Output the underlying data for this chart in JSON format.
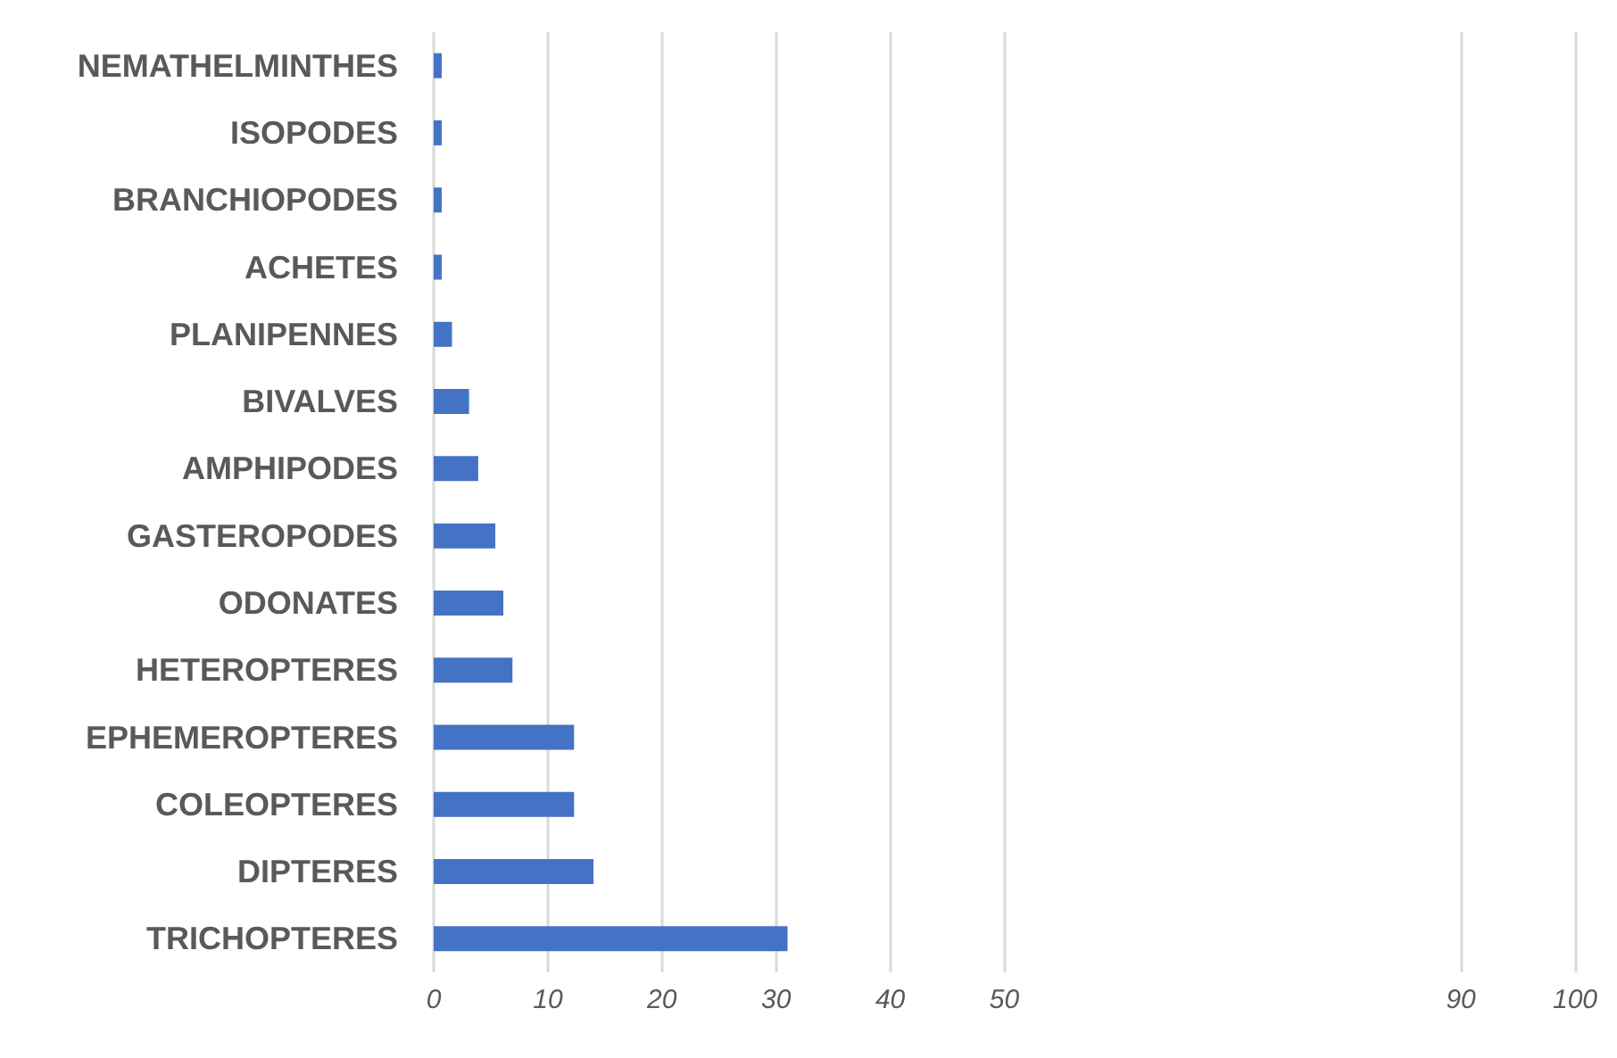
{
  "chart_data": {
    "type": "bar",
    "orientation": "horizontal",
    "categories": [
      "NEMATHELMINTHES",
      "ISOPODES",
      "BRANCHIOPODES",
      "ACHETES",
      "PLANIPENNES",
      "BIVALVES",
      "AMPHIPODES",
      "GASTEROPODES",
      "ODONATES",
      "HETEROPTERES",
      "EPHEMEROPTERES",
      "COLEOPTERES",
      "DIPTERES",
      "TRICHOPTERES"
    ],
    "values": [
      0.7,
      0.7,
      0.7,
      0.7,
      1.6,
      3.1,
      3.9,
      5.4,
      6.1,
      6.9,
      12.3,
      12.3,
      14,
      31
    ],
    "color": "#4472c4",
    "xlim": [
      0,
      100
    ],
    "xticks": [
      0,
      10,
      20,
      30,
      40,
      50,
      90,
      100
    ],
    "grid": "x"
  }
}
